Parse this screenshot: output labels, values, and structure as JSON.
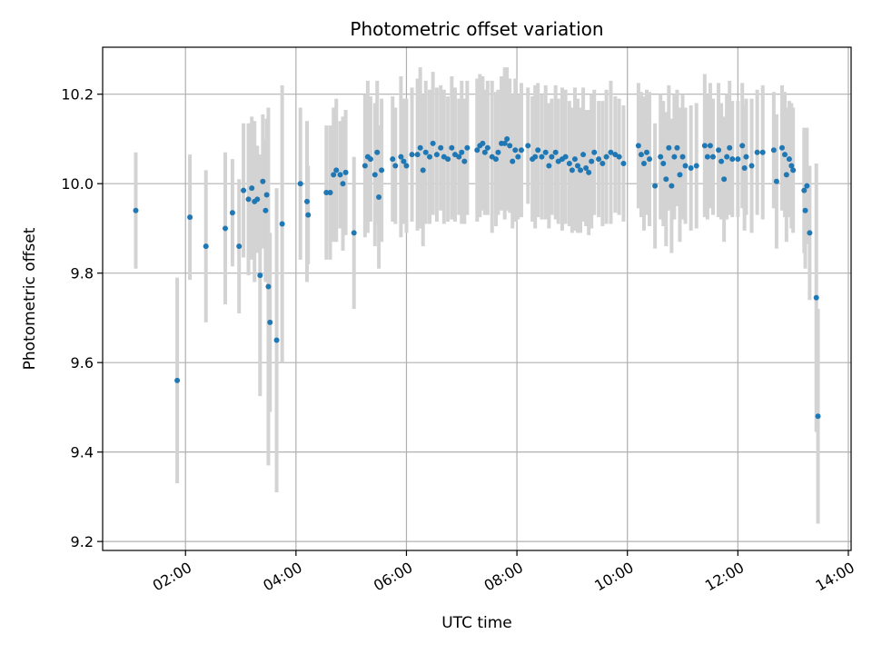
{
  "chart_data": {
    "type": "scatter",
    "title": "Photometric offset variation",
    "xlabel": "UTC time",
    "ylabel": "Photometric offset",
    "x_unit": "hours",
    "xlim": [
      0.5,
      14.05
    ],
    "ylim": [
      9.18,
      10.305
    ],
    "x_ticks": [
      {
        "value": 2,
        "label": "02:00"
      },
      {
        "value": 4,
        "label": "04:00"
      },
      {
        "value": 6,
        "label": "06:00"
      },
      {
        "value": 8,
        "label": "08:00"
      },
      {
        "value": 10,
        "label": "10:00"
      },
      {
        "value": 12,
        "label": "12:00"
      },
      {
        "value": 14,
        "label": "14:00"
      }
    ],
    "y_ticks": [
      {
        "value": 9.2,
        "label": "9.2"
      },
      {
        "value": 9.4,
        "label": "9.4"
      },
      {
        "value": 9.6,
        "label": "9.6"
      },
      {
        "value": 9.8,
        "label": "9.8"
      },
      {
        "value": 10.0,
        "label": "10.0"
      },
      {
        "value": 10.2,
        "label": "10.2"
      }
    ],
    "grid": true,
    "colors": {
      "point": "#1f77b4",
      "errorbar": "#d3d3d3",
      "grid": "#b0b0b0",
      "axis": "#000000"
    },
    "series": [
      {
        "points": [
          [
            1.1,
            9.94,
            0.13
          ],
          [
            1.85,
            9.56,
            0.23
          ],
          [
            2.08,
            9.925,
            0.14
          ],
          [
            2.37,
            9.86,
            0.17
          ],
          [
            2.72,
            9.9,
            0.17
          ],
          [
            2.85,
            9.935,
            0.12
          ],
          [
            2.97,
            9.86,
            0.15
          ],
          [
            3.05,
            9.985,
            0.15
          ],
          [
            3.14,
            9.965,
            0.17
          ],
          [
            3.2,
            9.99,
            0.16
          ],
          [
            3.25,
            9.96,
            0.18
          ],
          [
            3.3,
            9.965,
            0.12
          ],
          [
            3.35,
            9.795,
            0.27
          ],
          [
            3.4,
            10.005,
            0.15
          ],
          [
            3.45,
            9.94,
            0.16
          ],
          [
            3.47,
            9.975,
            0.17
          ],
          [
            3.5,
            9.77,
            0.4
          ],
          [
            3.53,
            9.69,
            0.2
          ],
          [
            3.65,
            9.65,
            0.34
          ],
          [
            3.75,
            9.91,
            0.31
          ],
          [
            4.08,
            10.0,
            0.17
          ],
          [
            4.2,
            9.96,
            0.18
          ],
          [
            4.22,
            9.93,
            0.11
          ],
          [
            4.55,
            9.98,
            0.15
          ],
          [
            4.62,
            9.98,
            0.15
          ],
          [
            4.68,
            10.02,
            0.15
          ],
          [
            4.73,
            10.03,
            0.16
          ],
          [
            4.8,
            10.02,
            0.12
          ],
          [
            4.85,
            10.0,
            0.15
          ],
          [
            4.9,
            10.025,
            0.14
          ],
          [
            5.05,
            9.89,
            0.17
          ],
          [
            5.25,
            10.04,
            0.16
          ],
          [
            5.3,
            10.06,
            0.17
          ],
          [
            5.35,
            10.055,
            0.14
          ],
          [
            5.43,
            10.02,
            0.16
          ],
          [
            5.47,
            10.07,
            0.16
          ],
          [
            5.5,
            9.97,
            0.16
          ],
          [
            5.55,
            10.03,
            0.16
          ],
          [
            5.75,
            10.055,
            0.14
          ],
          [
            5.8,
            10.04,
            0.13
          ],
          [
            5.9,
            10.06,
            0.18
          ],
          [
            5.95,
            10.05,
            0.14
          ],
          [
            6.0,
            10.04,
            0.15
          ],
          [
            6.1,
            10.065,
            0.15
          ],
          [
            6.2,
            10.065,
            0.17
          ],
          [
            6.25,
            10.08,
            0.18
          ],
          [
            6.3,
            10.03,
            0.17
          ],
          [
            6.35,
            10.07,
            0.16
          ],
          [
            6.42,
            10.06,
            0.15
          ],
          [
            6.48,
            10.09,
            0.16
          ],
          [
            6.55,
            10.065,
            0.15
          ],
          [
            6.62,
            10.08,
            0.14
          ],
          [
            6.68,
            10.06,
            0.15
          ],
          [
            6.75,
            10.055,
            0.14
          ],
          [
            6.82,
            10.08,
            0.16
          ],
          [
            6.88,
            10.065,
            0.15
          ],
          [
            6.95,
            10.06,
            0.13
          ],
          [
            7.0,
            10.07,
            0.16
          ],
          [
            7.05,
            10.05,
            0.14
          ],
          [
            7.1,
            10.08,
            0.15
          ],
          [
            7.28,
            10.075,
            0.16
          ],
          [
            7.33,
            10.085,
            0.16
          ],
          [
            7.38,
            10.09,
            0.15
          ],
          [
            7.42,
            10.07,
            0.14
          ],
          [
            7.47,
            10.08,
            0.15
          ],
          [
            7.55,
            10.06,
            0.17
          ],
          [
            7.62,
            10.055,
            0.15
          ],
          [
            7.66,
            10.07,
            0.14
          ],
          [
            7.72,
            10.09,
            0.15
          ],
          [
            7.78,
            10.09,
            0.17
          ],
          [
            7.82,
            10.1,
            0.16
          ],
          [
            7.87,
            10.085,
            0.15
          ],
          [
            7.92,
            10.05,
            0.15
          ],
          [
            7.97,
            10.075,
            0.16
          ],
          [
            8.02,
            10.06,
            0.14
          ],
          [
            8.08,
            10.075,
            0.15
          ],
          [
            8.2,
            10.085,
            0.13
          ],
          [
            8.28,
            10.055,
            0.14
          ],
          [
            8.33,
            10.06,
            0.16
          ],
          [
            8.38,
            10.075,
            0.15
          ],
          [
            8.45,
            10.06,
            0.14
          ],
          [
            8.52,
            10.07,
            0.15
          ],
          [
            8.58,
            10.04,
            0.14
          ],
          [
            8.63,
            10.06,
            0.13
          ],
          [
            8.7,
            10.07,
            0.15
          ],
          [
            8.75,
            10.05,
            0.14
          ],
          [
            8.82,
            10.055,
            0.16
          ],
          [
            8.88,
            10.06,
            0.15
          ],
          [
            8.95,
            10.045,
            0.14
          ],
          [
            9.0,
            10.03,
            0.14
          ],
          [
            9.05,
            10.055,
            0.16
          ],
          [
            9.1,
            10.04,
            0.15
          ],
          [
            9.15,
            10.03,
            0.14
          ],
          [
            9.2,
            10.065,
            0.15
          ],
          [
            9.25,
            10.035,
            0.13
          ],
          [
            9.3,
            10.025,
            0.14
          ],
          [
            9.35,
            10.05,
            0.15
          ],
          [
            9.4,
            10.07,
            0.14
          ],
          [
            9.48,
            10.055,
            0.13
          ],
          [
            9.55,
            10.045,
            0.14
          ],
          [
            9.62,
            10.06,
            0.15
          ],
          [
            9.7,
            10.07,
            0.16
          ],
          [
            9.78,
            10.065,
            0.13
          ],
          [
            9.85,
            10.06,
            0.13
          ],
          [
            9.93,
            10.045,
            0.13
          ],
          [
            10.2,
            10.085,
            0.14
          ],
          [
            10.25,
            10.065,
            0.14
          ],
          [
            10.3,
            10.045,
            0.15
          ],
          [
            10.35,
            10.07,
            0.14
          ],
          [
            10.4,
            10.055,
            0.15
          ],
          [
            10.5,
            9.995,
            0.14
          ],
          [
            10.6,
            10.06,
            0.14
          ],
          [
            10.65,
            10.045,
            0.14
          ],
          [
            10.7,
            10.01,
            0.15
          ],
          [
            10.75,
            10.08,
            0.14
          ],
          [
            10.8,
            9.995,
            0.15
          ],
          [
            10.85,
            10.06,
            0.14
          ],
          [
            10.9,
            10.08,
            0.13
          ],
          [
            10.95,
            10.02,
            0.15
          ],
          [
            11.0,
            10.06,
            0.14
          ],
          [
            11.05,
            10.04,
            0.13
          ],
          [
            11.15,
            10.035,
            0.14
          ],
          [
            11.25,
            10.04,
            0.14
          ],
          [
            11.4,
            10.085,
            0.16
          ],
          [
            11.45,
            10.06,
            0.14
          ],
          [
            11.5,
            10.085,
            0.14
          ],
          [
            11.55,
            10.06,
            0.13
          ],
          [
            11.65,
            10.075,
            0.15
          ],
          [
            11.7,
            10.05,
            0.13
          ],
          [
            11.75,
            10.01,
            0.14
          ],
          [
            11.8,
            10.06,
            0.14
          ],
          [
            11.85,
            10.08,
            0.15
          ],
          [
            11.9,
            10.055,
            0.13
          ],
          [
            12.0,
            10.055,
            0.13
          ],
          [
            12.08,
            10.085,
            0.14
          ],
          [
            12.12,
            10.035,
            0.14
          ],
          [
            12.15,
            10.06,
            0.13
          ],
          [
            12.25,
            10.04,
            0.15
          ],
          [
            12.35,
            10.07,
            0.14
          ],
          [
            12.45,
            10.07,
            0.15
          ],
          [
            12.65,
            10.075,
            0.13
          ],
          [
            12.7,
            10.005,
            0.15
          ],
          [
            12.8,
            10.08,
            0.14
          ],
          [
            12.85,
            10.065,
            0.14
          ],
          [
            12.88,
            10.02,
            0.15
          ],
          [
            12.93,
            10.055,
            0.13
          ],
          [
            12.97,
            10.04,
            0.14
          ],
          [
            13.0,
            10.03,
            0.14
          ],
          [
            13.2,
            9.985,
            0.14
          ],
          [
            13.22,
            9.94,
            0.13
          ],
          [
            13.25,
            9.995,
            0.13
          ],
          [
            13.3,
            9.89,
            0.15
          ],
          [
            13.42,
            9.745,
            0.3
          ],
          [
            13.45,
            9.48,
            0.24
          ]
        ]
      }
    ]
  }
}
